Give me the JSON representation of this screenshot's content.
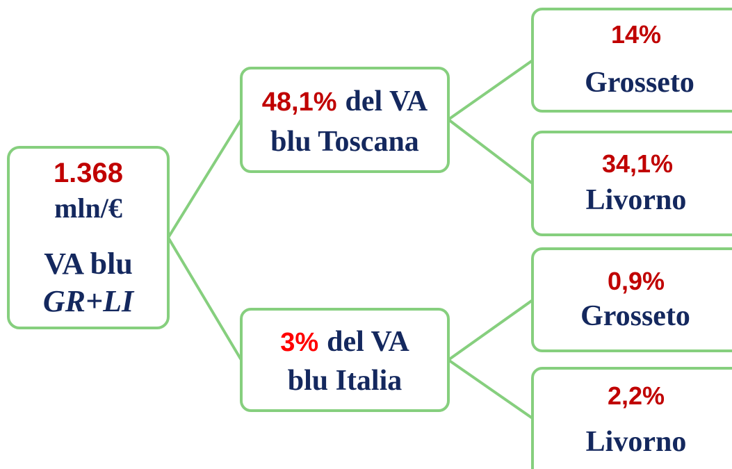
{
  "root": {
    "value": "1.368",
    "unit": "mln/€",
    "label": "VA blu",
    "area": "GR+LI"
  },
  "branches": [
    {
      "value": "48,1%",
      "lines": [
        "del VA",
        "blu Toscana"
      ],
      "children": [
        {
          "value": "14%",
          "label": "Grosseto"
        },
        {
          "value": "34,1%",
          "label": "Livorno"
        }
      ]
    },
    {
      "value": "3%",
      "lines": [
        "del VA",
        "blu Italia"
      ],
      "children": [
        {
          "value": "0,9%",
          "label": "Grosseto"
        },
        {
          "value": "2,2%",
          "label": "Livorno"
        }
      ]
    }
  ]
}
